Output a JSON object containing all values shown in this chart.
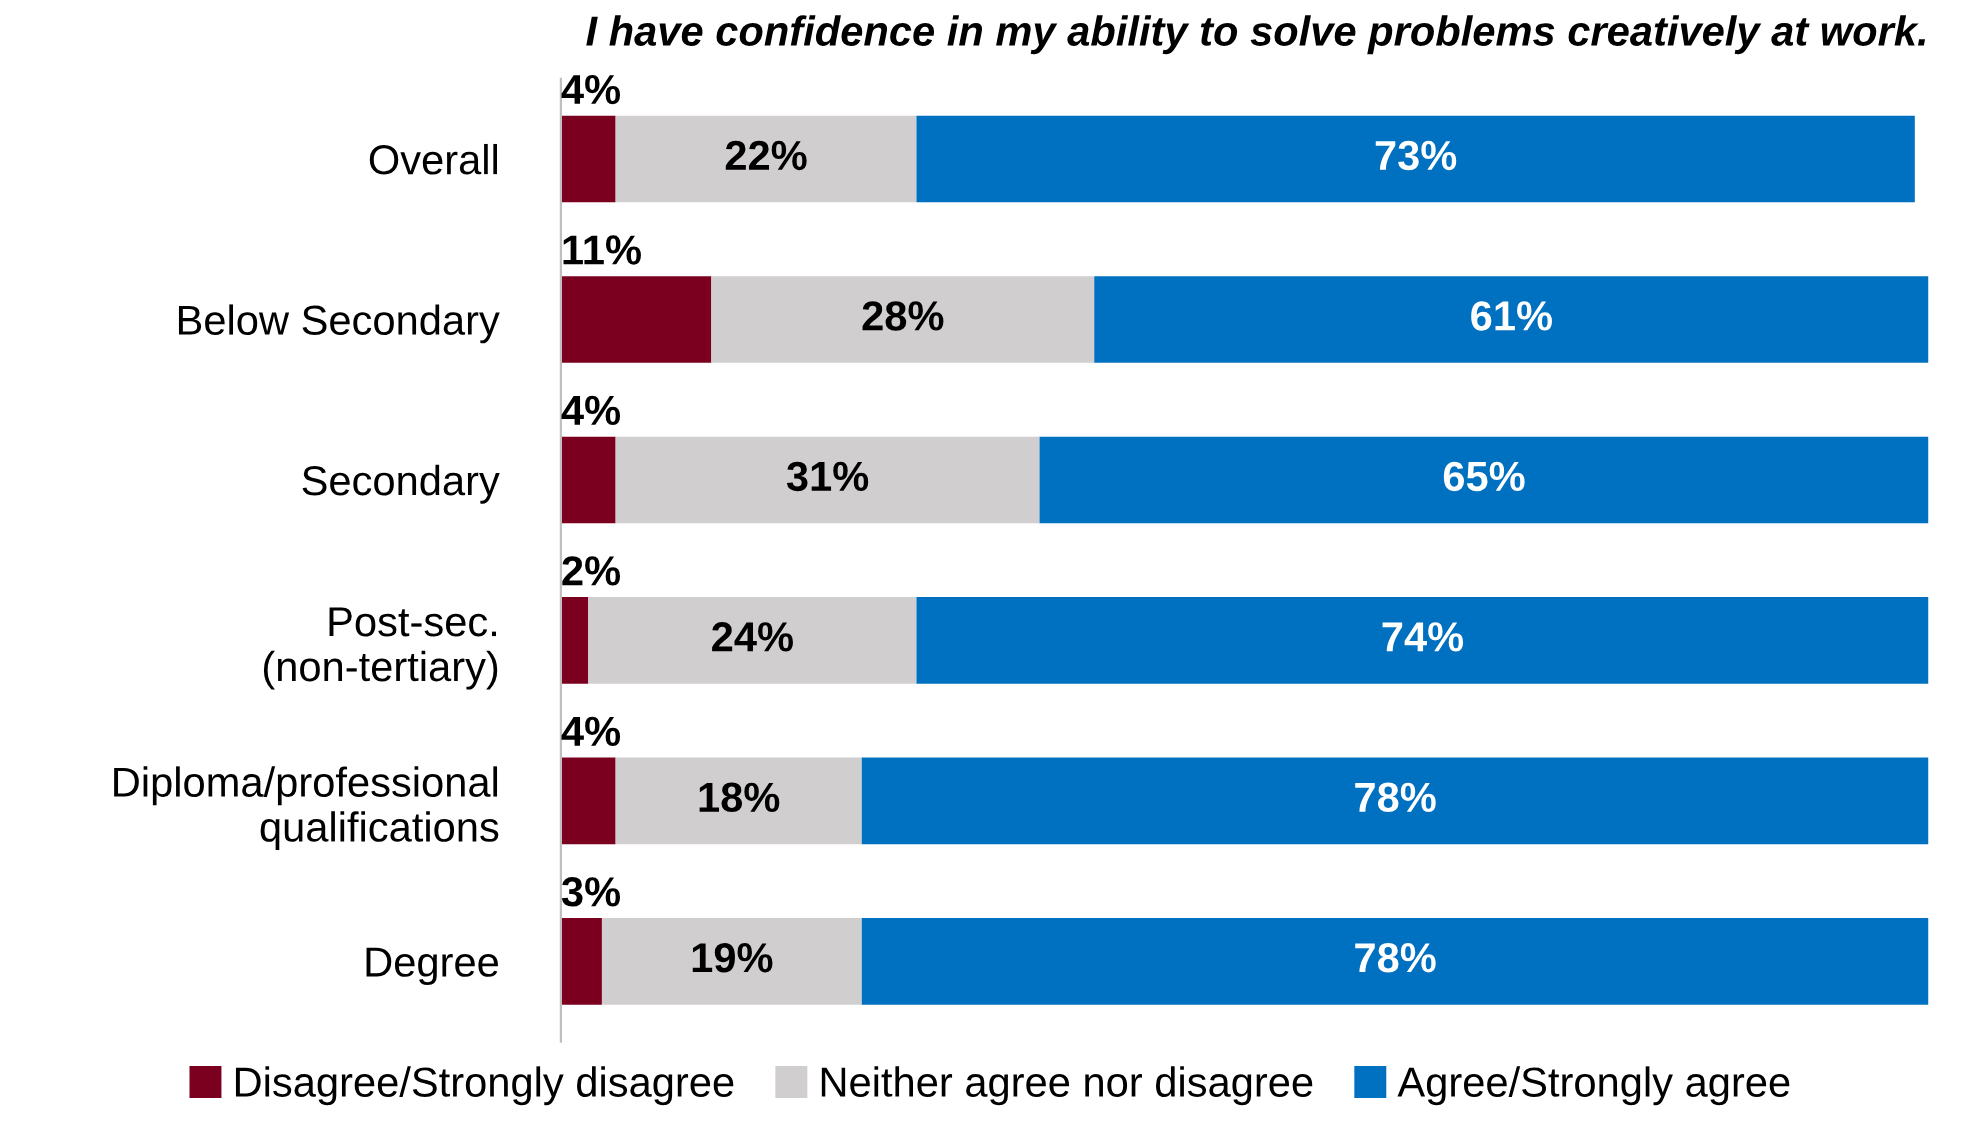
{
  "chart_data": {
    "type": "bar",
    "orientation": "horizontal",
    "stacked": true,
    "title": "I have confidence in my ability to solve problems creatively at work.",
    "categories": [
      "Overall",
      "Below Secondary",
      "Secondary",
      "Post-sec.\n(non-tertiary)",
      "Diploma/professional\nqualifications",
      "Degree"
    ],
    "series": [
      {
        "name": "Disagree/Strongly disagree",
        "color": "#7b0020",
        "values": [
          4,
          11,
          4,
          2,
          4,
          3
        ],
        "value_labels": [
          "4%",
          "11%",
          "4%",
          "2%",
          "4%",
          "3%"
        ]
      },
      {
        "name": "Neither agree nor disagree",
        "color": "#d0cece",
        "values": [
          22,
          28,
          31,
          24,
          18,
          19
        ],
        "value_labels": [
          "22%",
          "28%",
          "31%",
          "24%",
          "18%",
          "19%"
        ]
      },
      {
        "name": "Agree/Strongly agree",
        "color": "#0070c0",
        "values": [
          73,
          61,
          65,
          74,
          78,
          78
        ],
        "value_labels": [
          "73%",
          "61%",
          "65%",
          "74%",
          "78%",
          "78%"
        ]
      }
    ],
    "legend": "bottom",
    "grid": false
  }
}
